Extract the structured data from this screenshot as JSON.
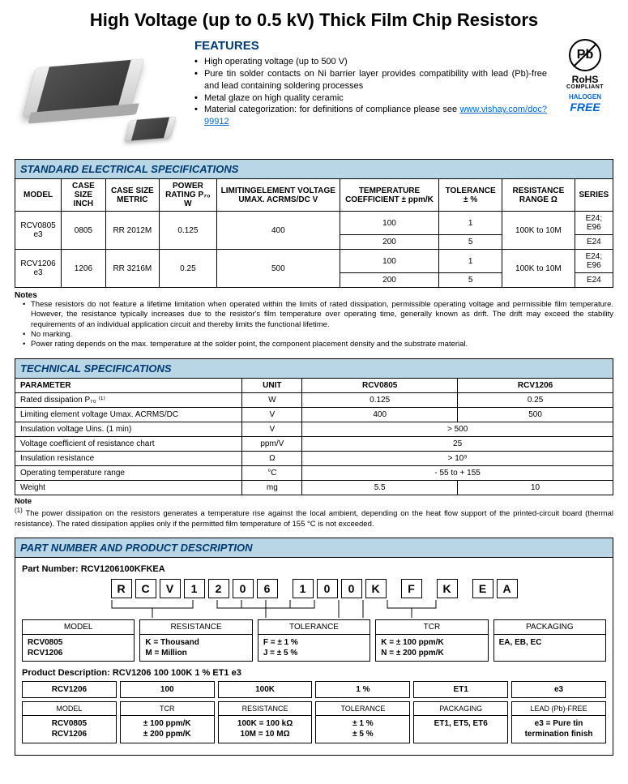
{
  "title": "High Voltage (up to 0.5 kV) Thick Film Chip Resistors",
  "features": {
    "heading": "FEATURES",
    "items": [
      "High operating voltage (up to 500 V)",
      "Pure tin solder contacts on Ni barrier layer provides compatibility with lead (Pb)-free and lead containing soldering processes",
      "Metal glaze on high quality ceramic",
      "Material categorization: for definitions of compliance please see "
    ],
    "link_text": "www.vishay.com/doc?99912"
  },
  "badges": {
    "pb": "Pb",
    "rohs": "RoHS",
    "rohs_sub": "COMPLIANT",
    "halogen": "HALOGEN",
    "free": "FREE"
  },
  "elec": {
    "header": "STANDARD ELECTRICAL SPECIFICATIONS",
    "cols": [
      "MODEL",
      "CASE SIZE INCH",
      "CASE SIZE METRIC",
      "POWER RATING P₇₀ W",
      "LIMITINGELEMENT VOLTAGE UMAX. ACRMS/DC V",
      "TEMPERATURE COEFFICIENT ± ppm/K",
      "TOLERANCE ± %",
      "RESISTANCE RANGE Ω",
      "SERIES"
    ],
    "r1": {
      "model": "RCV0805 e3",
      "inch": "0805",
      "metric": "RR 2012M",
      "power": "0.125",
      "volt": "400",
      "tc1": "100",
      "tol1": "1",
      "tc2": "200",
      "tol2": "5",
      "range": "100K to 10M",
      "series1": "E24; E96",
      "series2": "E24"
    },
    "r2": {
      "model": "RCV1206 e3",
      "inch": "1206",
      "metric": "RR 3216M",
      "power": "0.25",
      "volt": "500",
      "tc1": "100",
      "tol1": "1",
      "tc2": "200",
      "tol2": "5",
      "range": "100K to 10M",
      "series1": "E24; E96",
      "series2": "E24"
    }
  },
  "elec_notes": {
    "title": "Notes",
    "items": [
      "These resistors do not feature a lifetime limitation when operated within the limits of rated dissipation, permissible operating voltage and permissible film temperature. However, the resistance typically increases due to the resistor's film temperature over operating time, generally known as drift. The drift may exceed the stability requirements of an individual application circuit and thereby limits the functional lifetime.",
      "No marking.",
      "Power rating depends on the max. temperature at the solder point, the component placement density and the substrate material."
    ]
  },
  "tech": {
    "header": "TECHNICAL SPECIFICATIONS",
    "cols": [
      "PARAMETER",
      "UNIT",
      "RCV0805",
      "RCV1206"
    ],
    "rows": [
      {
        "p": "Rated dissipation P₇₀ ⁽¹⁾",
        "u": "W",
        "a": "0.125",
        "b": "0.25"
      },
      {
        "p": "Limiting element voltage Umax. ACRMS/DC",
        "u": "V",
        "a": "400",
        "b": "500"
      },
      {
        "p": "Insulation voltage Uins. (1 min)",
        "u": "V",
        "span": "> 500"
      },
      {
        "p": "Voltage coefficient of resistance chart",
        "u": "ppm/V",
        "span": "25"
      },
      {
        "p": "Insulation resistance",
        "u": "Ω",
        "span": "> 10⁹"
      },
      {
        "p": "Operating temperature range",
        "u": "°C",
        "span": "- 55 to + 155"
      },
      {
        "p": "Weight",
        "u": "mg",
        "a": "5.5",
        "b": "10"
      }
    ]
  },
  "tech_note": {
    "title": "Note",
    "sup": "(1)",
    "text": " The power dissipation on the resistors generates a temperature rise against the local ambient, depending on the heat flow support of the printed-circuit board (thermal resistance). The rated dissipation applies only if the permitted film temperature of 155 °C is not exceeded."
  },
  "pn": {
    "header": "PART NUMBER AND PRODUCT DESCRIPTION",
    "label": "Part Number: RCV1206100KFKEA",
    "chars": [
      "R",
      "C",
      "V",
      "1",
      "2",
      "0",
      "6",
      "1",
      "0",
      "0",
      "K",
      "F",
      "K",
      "E",
      "A"
    ],
    "groups": [
      {
        "h": "MODEL",
        "b": "RCV0805\nRCV1206"
      },
      {
        "h": "RESISTANCE",
        "b": "K = Thousand\nM = Million"
      },
      {
        "h": "TOLERANCE",
        "b": "F = ± 1 %\nJ = ± 5 %"
      },
      {
        "h": "TCR",
        "b": "K = ± 100 ppm/K\nN = ± 200 ppm/K"
      },
      {
        "h": "PACKAGING",
        "b": "EA, EB, EC"
      }
    ],
    "pd_label": "Product Description:  RCV1206  100  100K  1 %  ET1  e3",
    "pd_top": [
      "RCV1206",
      "100",
      "100K",
      "1 %",
      "ET1",
      "e3"
    ],
    "pd_bot": [
      {
        "h": "MODEL",
        "b": "RCV0805\nRCV1206"
      },
      {
        "h": "TCR",
        "b": "± 100 ppm/K\n± 200 ppm/K"
      },
      {
        "h": "RESISTANCE",
        "b": "100K = 100 kΩ\n10M = 10 MΩ"
      },
      {
        "h": "TOLERANCE",
        "b": "± 1 %\n± 5 %"
      },
      {
        "h": "PACKAGING",
        "b": "ET1, ET5, ET6"
      },
      {
        "h": "LEAD (Pb)-FREE",
        "b": "e3 = Pure tin termination finish"
      }
    ]
  },
  "colors": {
    "section_bg": "#b8d6e6",
    "section_fg": "#003b71",
    "link": "#0066cc"
  }
}
